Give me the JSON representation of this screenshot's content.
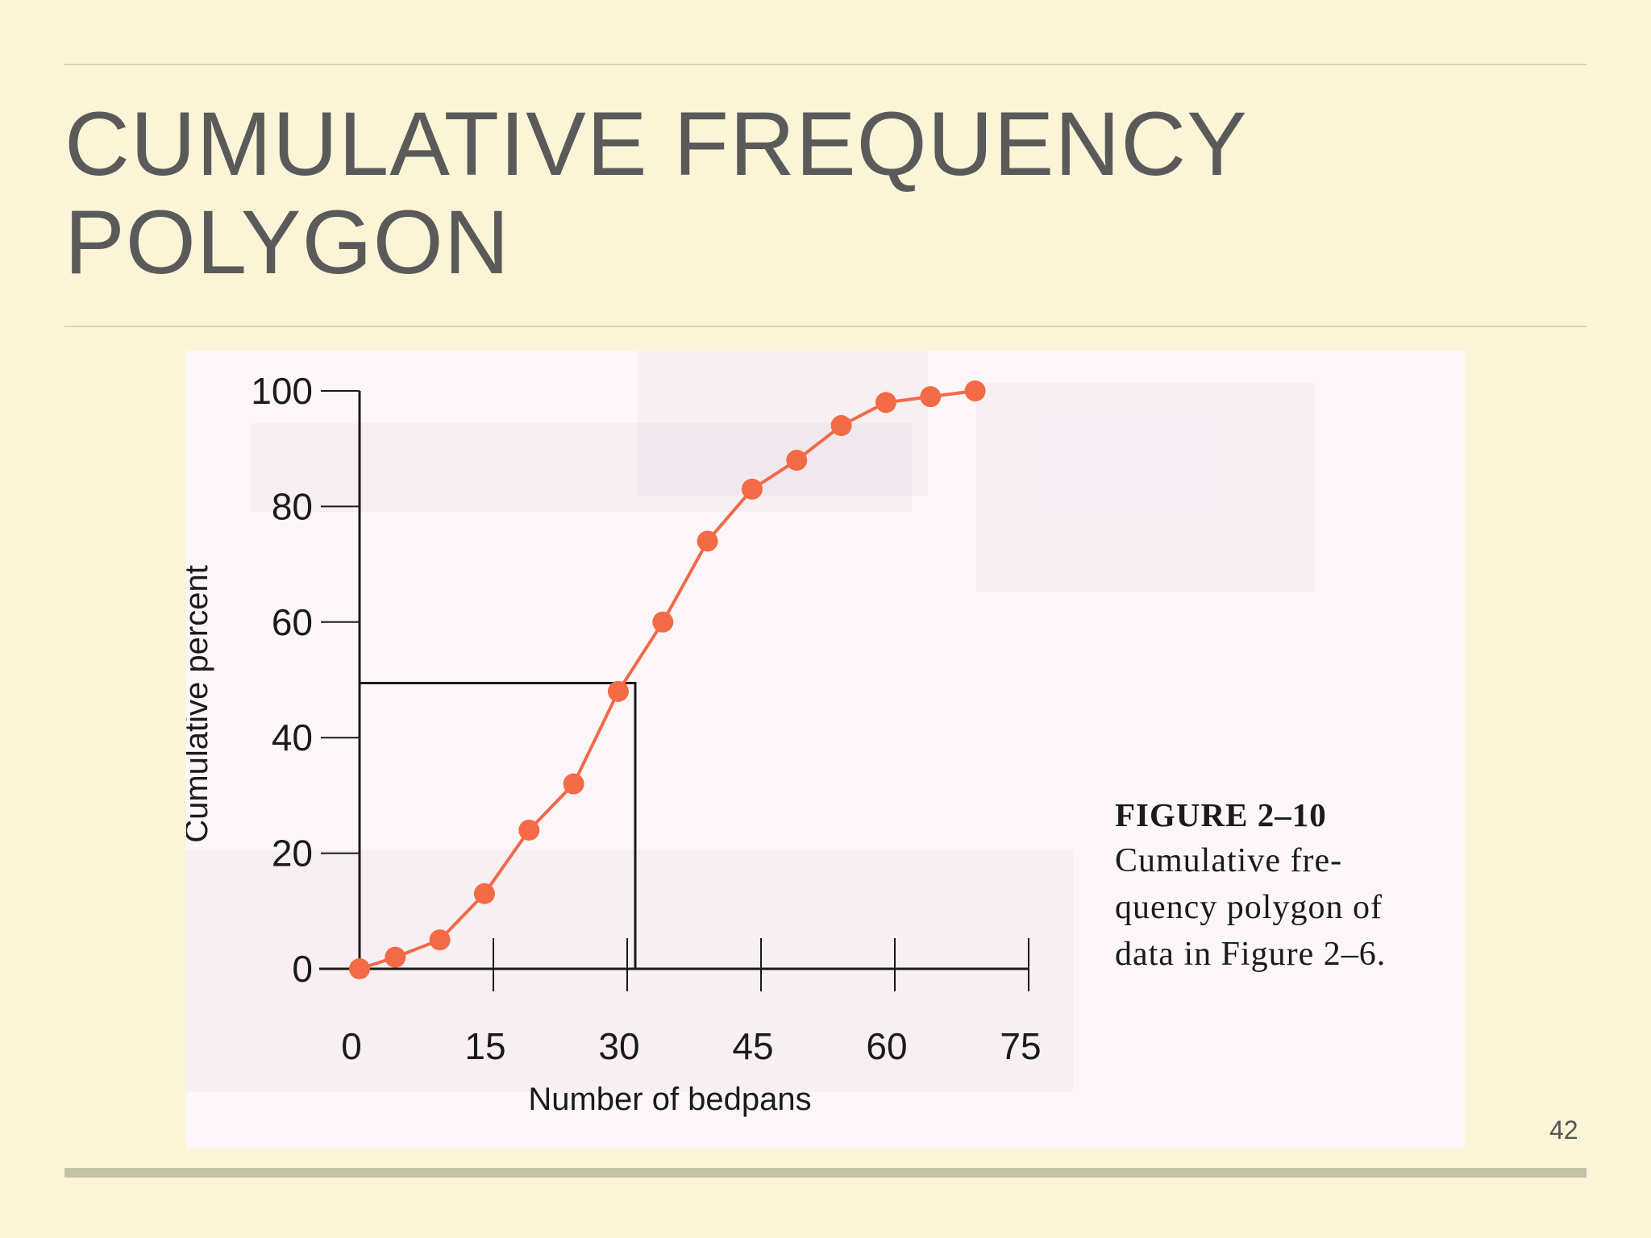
{
  "slide": {
    "title": "CUMULATIVE FREQUENCY POLYGON",
    "page_number": "42"
  },
  "figure": {
    "label": "FIGURE 2–10",
    "caption": "Cumulative fre-\nquency polygon of\ndata in Figure 2–6."
  },
  "colors": {
    "background": "#fbf4d6",
    "panel": "#fdf6f8",
    "line": "#f06a4a",
    "marker": "#f46a45",
    "axis": "#1a1a1a",
    "title": "#5a5a5a"
  },
  "chart_data": {
    "type": "line",
    "title": "",
    "xlabel": "Number of bedpans",
    "ylabel": "Cumulative percent",
    "xlim": [
      0,
      75
    ],
    "ylim": [
      0,
      100
    ],
    "x_ticks": [
      0,
      15,
      30,
      45,
      60,
      75
    ],
    "y_ticks": [
      0,
      20,
      40,
      60,
      80,
      100
    ],
    "grid": false,
    "legend": "none",
    "series": [
      {
        "x": [
          0,
          4,
          9,
          14,
          19,
          24,
          29,
          34,
          39,
          44,
          49,
          54,
          59,
          64,
          69
        ],
        "y": [
          0,
          2,
          5,
          13,
          24,
          32,
          48,
          60,
          74,
          83,
          88,
          94,
          98,
          99,
          100
        ]
      }
    ],
    "annotations": [
      {
        "type": "median-guide",
        "x": 30,
        "y": 50
      }
    ]
  }
}
